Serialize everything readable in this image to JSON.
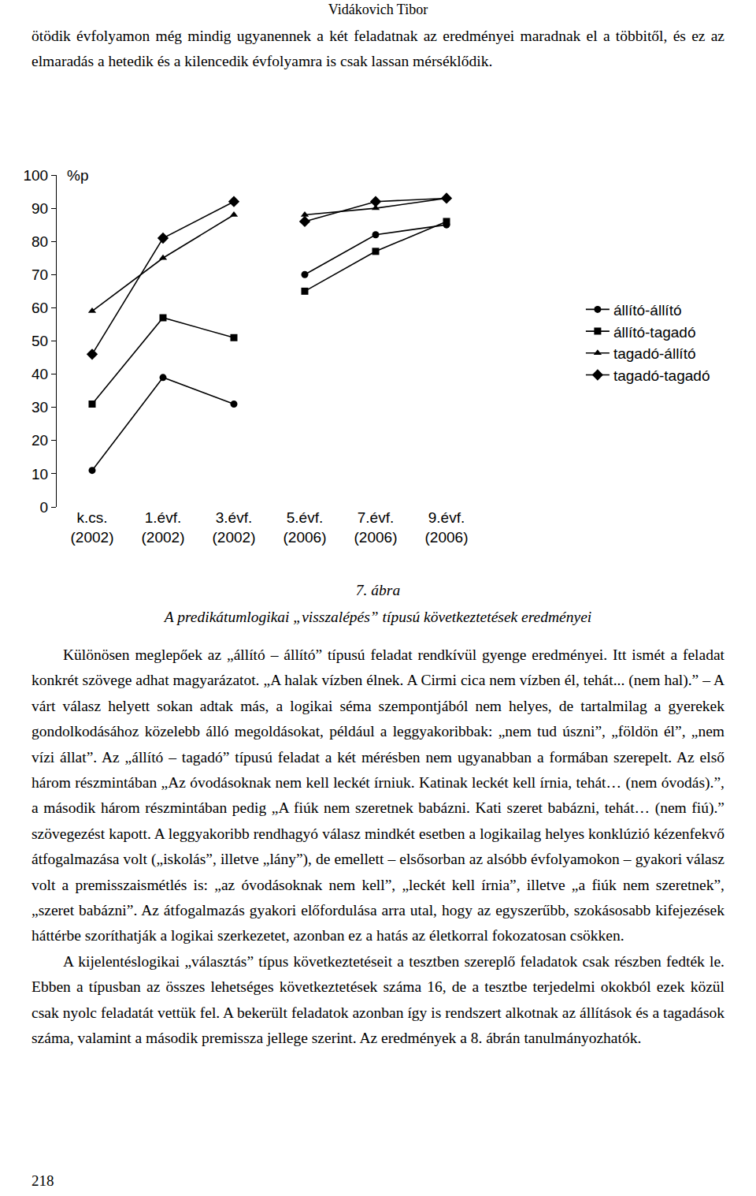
{
  "header": "Vidákovich Tibor",
  "top_paragraph": "ötödik évfolyamon még mindig ugyanennek a két feladatnak az eredményei maradnak el a többitől, és ez az elmaradás a hetedik és a kilencedik évfolyamra is csak lassan mérséklődik.",
  "chart_data": {
    "type": "line",
    "y_label": "%p",
    "categories": [
      "k.cs. (2002)",
      "1.évf. (2002)",
      "3.évf. (2002)",
      "5.évf. (2006)",
      "7.évf. (2006)",
      "9.évf. (2006)"
    ],
    "series": [
      {
        "name": "állító-állító",
        "color": "#000000",
        "marker": "circle",
        "values": [
          11,
          39,
          31,
          70,
          82,
          85
        ]
      },
      {
        "name": "állító-tagadó",
        "color": "#000000",
        "marker": "square",
        "values": [
          31,
          57,
          51,
          65,
          77,
          86
        ]
      },
      {
        "name": "tagadó-állító",
        "color": "#000000",
        "marker": "triangle-up",
        "values": [
          59,
          75,
          88,
          88,
          90,
          93
        ]
      },
      {
        "name": "tagadó-tagadó",
        "color": "#000000",
        "marker": "diamond",
        "values": [
          46,
          81,
          92,
          86,
          92,
          93
        ]
      }
    ],
    "ylim": [
      0,
      100
    ],
    "yticks": [
      0,
      10,
      20,
      30,
      40,
      50,
      60,
      70,
      80,
      90,
      100
    ],
    "grid": false,
    "legend": "right"
  },
  "caption": {
    "number": "7. ábra",
    "title": "A predikátumlogikai „visszalépés” típusú következtetések eredményei"
  },
  "paragraphs": [
    "Különösen meglepőek az „állító – állító” típusú feladat rendkívül gyenge eredményei. Itt ismét a feladat konkrét szövege adhat magyarázatot. „A halak vízben élnek. A Cirmi cica nem vízben él, tehát... (nem hal).” – A várt válasz helyett sokan adtak más, a logikai séma szempontjából nem helyes, de tartalmilag a gyerekek gondolkodásához közelebb álló megoldásokat, például a leggyakoribbak: „nem tud úszni”, „földön él”, „nem vízi állat”. Az „állító – tagadó” típusú feladat a két mérésben nem ugyanabban a formában szerepelt. Az első három részmintában „Az óvodásoknak nem kell leckét írniuk. Katinak leckét kell írnia, tehát… (nem óvodás).”, a második három részmintában pedig „A fiúk nem szeretnek babázni. Kati szeret babázni, tehát… (nem fiú).” szövegezést kapott. A leggyakoribb rendhagyó válasz mindkét esetben a logikailag helyes konklúzió kézenfekvő átfogalmazása volt („iskolás”, illetve „lány”), de emellett – elsősorban az alsóbb évfolyamokon – gyakori válasz volt a premisszaismétlés is: „az óvodásoknak nem kell”, „leckét kell írnia”, illetve „a fiúk nem szeretnek”, „szeret babázni”. Az átfogalmazás gyakori előfordulása arra utal, hogy az egyszerűbb, szokásosabb kifejezések háttérbe szoríthatják a logikai szerkezetet, azonban ez a hatás az életkorral fokozatosan csökken.",
    "A kijelentéslogikai „választás” típus következtetéseit a tesztben szereplő feladatok csak részben fedték le. Ebben a típusban az összes lehetséges következtetések száma 16, de a tesztbe terjedelmi okokból ezek közül csak nyolc feladatát vettük fel. A bekerült feladatok azonban így is rendszert alkotnak az állítások és a tagadások száma, valamint a második premissza jellege szerint. Az eredmények a 8. ábrán tanulmányozhatók."
  ],
  "page_number": 218
}
